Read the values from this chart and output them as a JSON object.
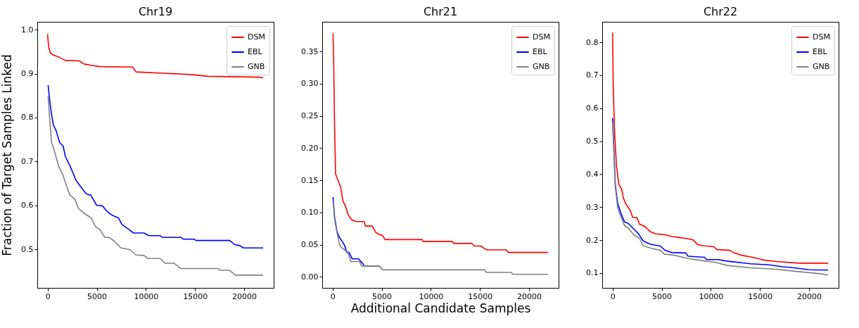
{
  "chart_data": [
    {
      "type": "line",
      "title": "Chr19",
      "ylabel": "Fraction of Target Samples Linked",
      "xlim": [
        -1050,
        23000
      ],
      "xticks": [
        0,
        5000,
        10000,
        15000,
        20000
      ],
      "ylim": [
        0.412,
        1.018
      ],
      "yticks": [
        0.5,
        0.6,
        0.7,
        0.8,
        0.9,
        {
          "value": 1,
          "label": "1.0"
        }
      ],
      "legend": "top right",
      "grid": false,
      "series": [
        {
          "name": "DSM",
          "color": "#ff0000",
          "x": [
            0,
            50,
            120,
            280,
            520,
            1110,
            1810,
            3220,
            3690,
            4400,
            5340,
            8640,
            8990,
            11690,
            14520,
            16280,
            21580,
            21930
          ],
          "values": [
            0.99,
            0.975,
            0.96,
            0.947,
            0.943,
            0.938,
            0.93,
            0.929,
            0.922,
            0.919,
            0.916,
            0.915,
            0.904,
            0.901,
            0.898,
            0.894,
            0.892,
            0.89
          ]
        },
        {
          "name": "EBL",
          "color": "#0000ff",
          "x": [
            50,
            210,
            400,
            590,
            870,
            1220,
            1580,
            1810,
            2280,
            2870,
            3220,
            3930,
            4400,
            4990,
            5580,
            6050,
            6520,
            7220,
            7580,
            8400,
            8750,
            9810,
            10280,
            11460,
            11690,
            13580,
            13810,
            14870,
            15110,
            18520,
            18990,
            19580,
            19930,
            21930
          ],
          "values": [
            0.874,
            0.84,
            0.807,
            0.783,
            0.77,
            0.743,
            0.735,
            0.711,
            0.69,
            0.658,
            0.647,
            0.626,
            0.623,
            0.6,
            0.599,
            0.586,
            0.578,
            0.571,
            0.556,
            0.543,
            0.537,
            0.537,
            0.531,
            0.531,
            0.527,
            0.527,
            0.523,
            0.523,
            0.52,
            0.52,
            0.511,
            0.508,
            0.503,
            0.503
          ]
        },
        {
          "name": "GNB",
          "color": "#808080",
          "x": [
            50,
            210,
            400,
            680,
            1110,
            1580,
            1930,
            2280,
            2750,
            3110,
            3690,
            4400,
            4870,
            5340,
            5810,
            6280,
            6750,
            7460,
            8400,
            8990,
            9810,
            10170,
            11460,
            11930,
            12870,
            13580,
            17340,
            17580,
            18520,
            19110,
            21930
          ],
          "values": [
            0.848,
            0.797,
            0.743,
            0.725,
            0.69,
            0.668,
            0.644,
            0.623,
            0.615,
            0.594,
            0.582,
            0.572,
            0.552,
            0.544,
            0.527,
            0.527,
            0.519,
            0.503,
            0.499,
            0.487,
            0.486,
            0.479,
            0.479,
            0.468,
            0.468,
            0.456,
            0.456,
            0.452,
            0.452,
            0.441,
            0.441
          ]
        }
      ]
    },
    {
      "type": "line",
      "title": "Chr21",
      "xlabel": "Additional Candidate Samples",
      "xlim": [
        -1050,
        23000
      ],
      "xticks": [
        0,
        5000,
        10000,
        15000,
        20000
      ],
      "ylim": [
        -0.017,
        0.396
      ],
      "yticks": [
        {
          "value": 0,
          "label": "0.00"
        },
        {
          "value": 0.05,
          "label": "0.05"
        },
        {
          "value": 0.1,
          "label": "0.10"
        },
        {
          "value": 0.15,
          "label": "0.15"
        },
        {
          "value": 0.2,
          "label": "0.20"
        },
        {
          "value": 0.25,
          "label": "0.25"
        },
        {
          "value": 0.3,
          "label": "0.30"
        },
        {
          "value": 0.35,
          "label": "0.35"
        }
      ],
      "legend": "top right",
      "grid": false,
      "series": [
        {
          "name": "DSM",
          "color": "#ff0000",
          "x": [
            50,
            120,
            210,
            310,
            520,
            820,
            1060,
            1340,
            1580,
            1930,
            2400,
            3220,
            3340,
            4050,
            4400,
            4750,
            5110,
            5340,
            9110,
            9220,
            12170,
            12350,
            14170,
            14400,
            15110,
            15460,
            15690,
            17690,
            17880,
            21930
          ],
          "values": [
            0.378,
            0.333,
            0.231,
            0.16,
            0.151,
            0.14,
            0.118,
            0.109,
            0.097,
            0.089,
            0.086,
            0.086,
            0.079,
            0.079,
            0.069,
            0.066,
            0.064,
            0.058,
            0.058,
            0.055,
            0.055,
            0.052,
            0.052,
            0.048,
            0.048,
            0.044,
            0.042,
            0.042,
            0.038,
            0.038
          ]
        },
        {
          "name": "EBL",
          "color": "#0000ff",
          "x": [
            50,
            210,
            450,
            680,
            990,
            1220,
            1460,
            1690,
            2000,
            2640,
            3110,
            3220,
            4750
          ],
          "values": [
            0.124,
            0.093,
            0.071,
            0.062,
            0.055,
            0.049,
            0.038,
            0.038,
            0.028,
            0.028,
            0.02,
            0.017,
            0.017
          ]
        },
        {
          "name": "GNB",
          "color": "#808080",
          "x": [
            50,
            210,
            520,
            680,
            870,
            1220,
            1580,
            1860,
            2750,
            2940,
            4750,
            5110,
            15460,
            15650,
            18170,
            18350,
            21930
          ],
          "values": [
            0.118,
            0.089,
            0.064,
            0.053,
            0.046,
            0.042,
            0.038,
            0.024,
            0.024,
            0.017,
            0.017,
            0.011,
            0.011,
            0.007,
            0.007,
            0.004,
            0.004
          ]
        }
      ]
    },
    {
      "type": "line",
      "title": "Chr22",
      "xlim": [
        -1050,
        23000
      ],
      "xticks": [
        0,
        5000,
        10000,
        15000,
        20000
      ],
      "ylim": [
        0.055,
        0.862
      ],
      "yticks": [
        0.1,
        0.2,
        0.3,
        0.4,
        0.5,
        0.6,
        0.7,
        0.8
      ],
      "legend": "top right",
      "grid": false,
      "series": [
        {
          "name": "DSM",
          "color": "#ff0000",
          "x": [
            0,
            70,
            210,
            400,
            640,
            920,
            1110,
            1390,
            1810,
            2050,
            2470,
            2750,
            3110,
            3460,
            3810,
            4400,
            5340,
            6050,
            6750,
            7460,
            8170,
            8640,
            9110,
            10280,
            10640,
            11930,
            12400,
            13110,
            14050,
            14750,
            15460,
            16640,
            18990,
            21930
          ],
          "values": [
            0.829,
            0.668,
            0.526,
            0.426,
            0.369,
            0.355,
            0.327,
            0.308,
            0.29,
            0.269,
            0.268,
            0.248,
            0.244,
            0.237,
            0.226,
            0.219,
            0.216,
            0.211,
            0.208,
            0.205,
            0.201,
            0.187,
            0.183,
            0.18,
            0.171,
            0.169,
            0.161,
            0.154,
            0.149,
            0.144,
            0.139,
            0.135,
            0.13,
            0.13
          ]
        },
        {
          "name": "EBL",
          "color": "#0000ff",
          "x": [
            0,
            120,
            280,
            520,
            870,
            1220,
            1580,
            2050,
            2640,
            3110,
            3460,
            3930,
            4870,
            5340,
            6050,
            7460,
            7690,
            9340,
            9580,
            10750,
            11460,
            14050,
            15930,
            17340,
            18520,
            19930,
            21930
          ],
          "values": [
            0.57,
            0.49,
            0.369,
            0.312,
            0.28,
            0.255,
            0.251,
            0.237,
            0.219,
            0.198,
            0.192,
            0.187,
            0.182,
            0.169,
            0.162,
            0.161,
            0.151,
            0.148,
            0.141,
            0.141,
            0.137,
            0.128,
            0.125,
            0.119,
            0.116,
            0.11,
            0.109
          ]
        },
        {
          "name": "GNB",
          "color": "#808080",
          "x": [
            0,
            120,
            280,
            520,
            870,
            1220,
            1580,
            2170,
            2750,
            3110,
            3930,
            4870,
            5220,
            6280,
            7690,
            9340,
            10520,
            11690,
            14050,
            16400,
            18750,
            21110,
            21930
          ],
          "values": [
            0.558,
            0.476,
            0.362,
            0.298,
            0.269,
            0.244,
            0.237,
            0.216,
            0.205,
            0.183,
            0.175,
            0.169,
            0.158,
            0.154,
            0.144,
            0.137,
            0.132,
            0.123,
            0.116,
            0.112,
            0.105,
            0.098,
            0.094
          ]
        }
      ]
    }
  ]
}
